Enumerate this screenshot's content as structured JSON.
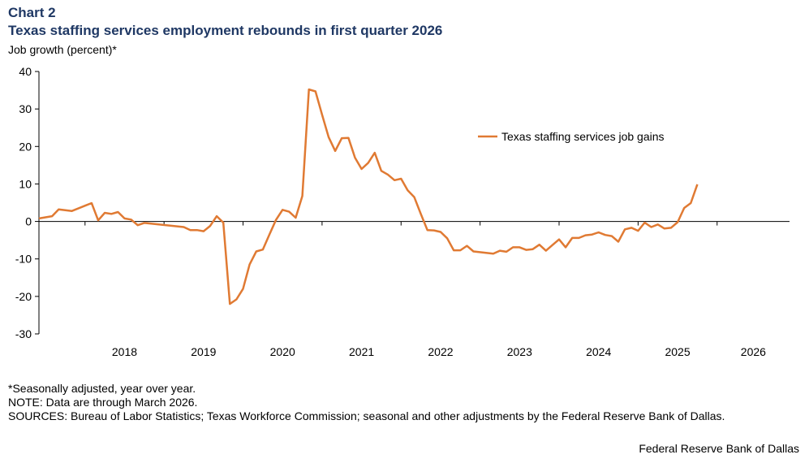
{
  "header": {
    "chart_label": "Chart 2",
    "title": "Texas staffing services employment rebounds in first quarter 2026",
    "y_unit": "Job growth  (percent)*"
  },
  "footer": {
    "notes": [
      "*Seasonally adjusted, year over year.",
      "NOTE: Data are through  March 2026.",
      "SOURCES: Bureau of Labor Statistics; Texas Workforce Commission; seasonal and other adjustments  by the Federal Reserve Bank of Dallas."
    ],
    "credit": "Federal Reserve Bank of Dallas"
  },
  "colors": {
    "series": "#e07a33",
    "axis": "#000000"
  },
  "chart_data": {
    "type": "line",
    "title": "Texas staffing services employment rebounds in first quarter 2026",
    "xlabel": "",
    "ylabel": "Job growth  (percent)*",
    "ylim": [
      -30,
      40
    ],
    "yticks": [
      40,
      30,
      20,
      10,
      0,
      -10,
      -20,
      -30
    ],
    "xlim": [
      "2017-06",
      "2026-12"
    ],
    "x_tick_labels": [
      "2018",
      "2019",
      "2020",
      "2021",
      "2022",
      "2023",
      "2024",
      "2025",
      "2026"
    ],
    "grid": false,
    "legend": "right, inside plot",
    "series": [
      {
        "name": "Texas staffing services job gains",
        "color": "#e07a33",
        "points": [
          [
            "2017-06",
            0.8
          ],
          [
            "2017-08",
            1.4
          ],
          [
            "2017-09",
            3.2
          ],
          [
            "2017-11",
            2.8
          ],
          [
            "2018-01",
            4.2
          ],
          [
            "2018-02",
            4.9
          ],
          [
            "2018-03",
            0.3
          ],
          [
            "2018-04",
            2.3
          ],
          [
            "2018-05",
            2.0
          ],
          [
            "2018-06",
            2.5
          ],
          [
            "2018-07",
            0.8
          ],
          [
            "2018-08",
            0.5
          ],
          [
            "2018-09",
            -1.0
          ],
          [
            "2018-10",
            -0.4
          ],
          [
            "2019-04",
            -1.5
          ],
          [
            "2019-05",
            -2.3
          ],
          [
            "2019-06",
            -2.3
          ],
          [
            "2019-07",
            -2.6
          ],
          [
            "2019-08",
            -1.2
          ],
          [
            "2019-09",
            1.4
          ],
          [
            "2019-10",
            -0.3
          ],
          [
            "2019-11",
            -22.0
          ],
          [
            "2019-12",
            -20.8
          ],
          [
            "2020-01",
            -18.0
          ],
          [
            "2020-02",
            -11.5
          ],
          [
            "2020-03",
            -8.0
          ],
          [
            "2020-04",
            -7.5
          ],
          [
            "2020-05",
            -3.5
          ],
          [
            "2020-06",
            0.4
          ],
          [
            "2020-07",
            3.1
          ],
          [
            "2020-08",
            2.6
          ],
          [
            "2020-09",
            1.0
          ],
          [
            "2020-10",
            6.8
          ],
          [
            "2020-11",
            35.2
          ],
          [
            "2020-12",
            34.7
          ],
          [
            "2021-01",
            28.5
          ],
          [
            "2021-02",
            22.5
          ],
          [
            "2021-03",
            18.8
          ],
          [
            "2021-04",
            22.2
          ],
          [
            "2021-05",
            22.3
          ],
          [
            "2021-06",
            17.0
          ],
          [
            "2021-07",
            14.0
          ],
          [
            "2021-08",
            15.6
          ],
          [
            "2021-09",
            18.3
          ],
          [
            "2021-10",
            13.5
          ],
          [
            "2021-11",
            12.5
          ],
          [
            "2021-12",
            11.0
          ],
          [
            "2022-01",
            11.4
          ],
          [
            "2022-02",
            8.3
          ],
          [
            "2022-03",
            6.5
          ],
          [
            "2022-04",
            2.0
          ],
          [
            "2022-05",
            -2.3
          ],
          [
            "2022-06",
            -2.4
          ],
          [
            "2022-07",
            -2.8
          ],
          [
            "2022-08",
            -4.5
          ],
          [
            "2022-09",
            -7.7
          ],
          [
            "2022-10",
            -7.7
          ],
          [
            "2022-11",
            -6.5
          ],
          [
            "2022-12",
            -8.0
          ],
          [
            "2023-03",
            -8.6
          ],
          [
            "2023-04",
            -7.8
          ],
          [
            "2023-05",
            -8.1
          ],
          [
            "2023-06",
            -6.9
          ],
          [
            "2023-07",
            -6.9
          ],
          [
            "2023-08",
            -7.6
          ],
          [
            "2023-09",
            -7.4
          ],
          [
            "2023-10",
            -6.2
          ],
          [
            "2023-11",
            -7.8
          ],
          [
            "2023-12",
            -6.3
          ],
          [
            "2024-01",
            -4.8
          ],
          [
            "2024-02",
            -6.9
          ],
          [
            "2024-03",
            -4.4
          ],
          [
            "2024-04",
            -4.4
          ],
          [
            "2024-05",
            -3.7
          ],
          [
            "2024-06",
            -3.5
          ],
          [
            "2024-07",
            -2.9
          ],
          [
            "2024-08",
            -3.6
          ],
          [
            "2024-09",
            -3.9
          ],
          [
            "2024-10",
            -5.4
          ],
          [
            "2024-11",
            -2.1
          ],
          [
            "2024-12",
            -1.7
          ],
          [
            "2025-01",
            -2.5
          ],
          [
            "2025-02",
            -0.3
          ],
          [
            "2025-03",
            -1.5
          ],
          [
            "2025-04",
            -0.8
          ],
          [
            "2025-05",
            -1.9
          ],
          [
            "2025-06",
            -1.7
          ],
          [
            "2025-07",
            -0.2
          ],
          [
            "2025-08",
            3.6
          ],
          [
            "2025-09",
            4.9
          ],
          [
            "2025-10",
            9.9
          ]
        ]
      }
    ]
  }
}
